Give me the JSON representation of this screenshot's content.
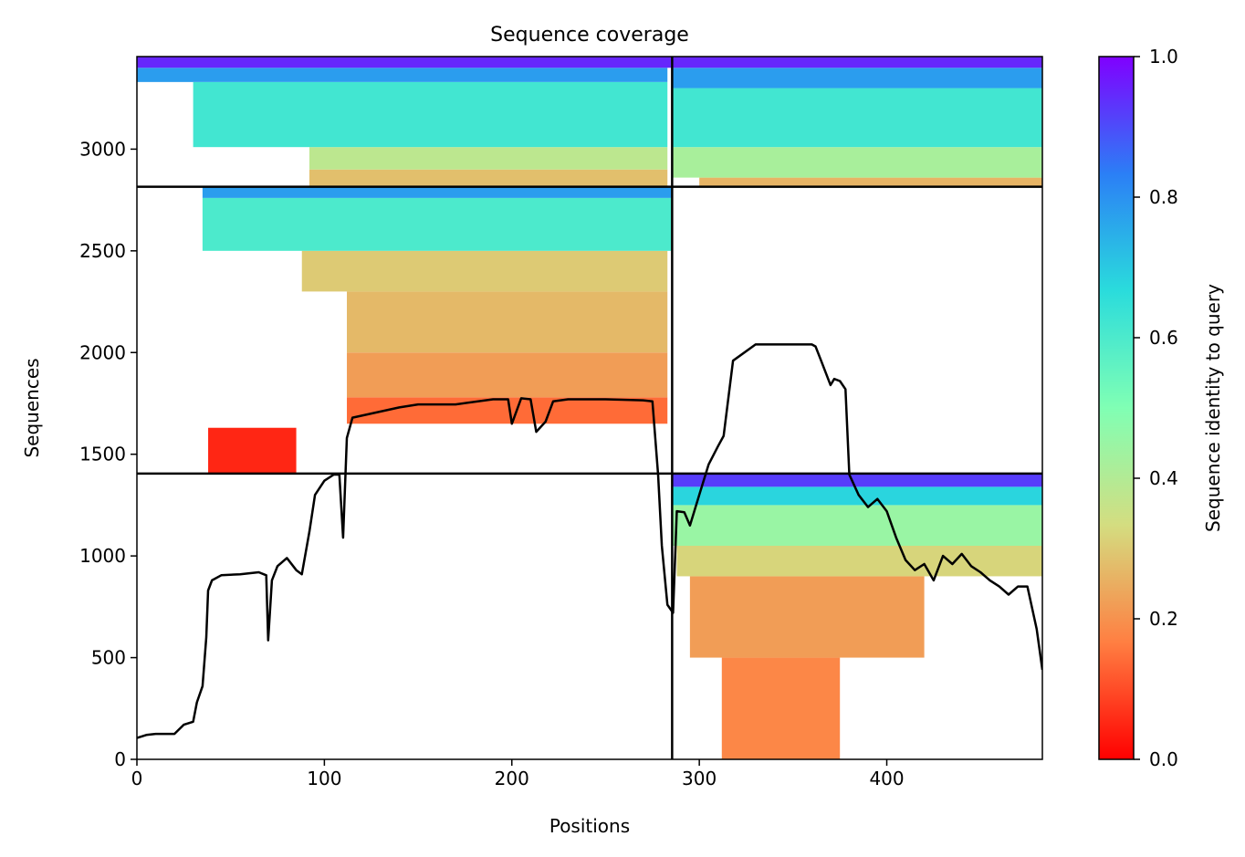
{
  "chart_data": {
    "type": "heatmap",
    "title": "Sequence coverage",
    "xlabel": "Positions",
    "ylabel": "Sequences",
    "xlim": [
      0,
      483
    ],
    "ylim": [
      0,
      3455
    ],
    "xticks": [
      0,
      100,
      200,
      300,
      400
    ],
    "xtick_labels": [
      "0",
      "100",
      "200",
      "300",
      "400"
    ],
    "yticks": [
      0,
      500,
      1000,
      1500,
      2000,
      2500,
      3000
    ],
    "ytick_labels": [
      "0",
      "500",
      "1000",
      "1500",
      "2000",
      "2500",
      "3000"
    ],
    "colorbar": {
      "label": "Sequence identity to query",
      "range": [
        0,
        1
      ],
      "ticks": [
        0,
        0.2,
        0.4,
        0.6,
        0.8,
        1.0
      ],
      "tick_labels": [
        "0.0",
        "0.2",
        "0.4",
        "0.6",
        "0.8",
        "1.0"
      ],
      "colormap": "rainbow_r",
      "stops": [
        "#ff0000",
        "#ff7f42",
        "#d4dd80",
        "#80ffb4",
        "#2adcdc",
        "#2b7ff6",
        "#8000ff"
      ]
    },
    "dividers": {
      "chain_boundary_x": 285.5,
      "block_boundaries_y": [
        1405,
        2815
      ]
    },
    "blocks": [
      {
        "x_range": [
          0,
          285
        ],
        "y_range": [
          2815,
          3455
        ],
        "rows": [
          {
            "y": [
              2815,
              2900
            ],
            "x": [
              92,
              283
            ],
            "identity": 0.28
          },
          {
            "y": [
              2900,
              3010
            ],
            "x": [
              92,
              283
            ],
            "identity": 0.38
          },
          {
            "y": [
              3010,
              3330
            ],
            "x": [
              30,
              283
            ],
            "identity": 0.62
          },
          {
            "y": [
              3330,
              3400
            ],
            "x": [
              0,
              283
            ],
            "identity": 0.78
          },
          {
            "y": [
              3400,
              3455
            ],
            "x": [
              0,
              285
            ],
            "identity": 0.95
          }
        ]
      },
      {
        "x_range": [
          286,
          483
        ],
        "y_range": [
          2815,
          3455
        ],
        "rows": [
          {
            "y": [
              2815,
              2860
            ],
            "x": [
              300,
              483
            ],
            "identity": 0.26
          },
          {
            "y": [
              2860,
              3010
            ],
            "x": [
              286,
              483
            ],
            "identity": 0.42
          },
          {
            "y": [
              3010,
              3300
            ],
            "x": [
              286,
              483
            ],
            "identity": 0.62
          },
          {
            "y": [
              3300,
              3400
            ],
            "x": [
              286,
              483
            ],
            "identity": 0.78
          },
          {
            "y": [
              3400,
              3455
            ],
            "x": [
              286,
              483
            ],
            "identity": 0.95
          }
        ]
      },
      {
        "x_range": [
          0,
          285
        ],
        "y_range": [
          1405,
          2815
        ],
        "rows": [
          {
            "y": [
              1405,
              1630
            ],
            "x": [
              38,
              85
            ],
            "identity": 0.05
          },
          {
            "y": [
              1650,
              1780
            ],
            "x": [
              112,
              283
            ],
            "identity": 0.14
          },
          {
            "y": [
              1780,
              2000
            ],
            "x": [
              112,
              283
            ],
            "identity": 0.22
          },
          {
            "y": [
              2000,
              2300
            ],
            "x": [
              112,
              283
            ],
            "identity": 0.27
          },
          {
            "y": [
              2300,
              2500
            ],
            "x": [
              88,
              283
            ],
            "identity": 0.3
          },
          {
            "y": [
              2500,
              2760
            ],
            "x": [
              35,
              285
            ],
            "identity": 0.6
          },
          {
            "y": [
              2760,
              2815
            ],
            "x": [
              35,
              285
            ],
            "identity": 0.78
          }
        ]
      },
      {
        "x_range": [
          286,
          483
        ],
        "y_range": [
          0,
          1405
        ],
        "rows": [
          {
            "y": [
              0,
              500
            ],
            "x": [
              312,
              375
            ],
            "identity": 0.18
          },
          {
            "y": [
              500,
              900
            ],
            "x": [
              295,
              420
            ],
            "identity": 0.22
          },
          {
            "y": [
              900,
              1050
            ],
            "x": [
              288,
              483
            ],
            "identity": 0.32
          },
          {
            "y": [
              1050,
              1250
            ],
            "x": [
              286,
              483
            ],
            "identity": 0.45
          },
          {
            "y": [
              1250,
              1340
            ],
            "x": [
              286,
              483
            ],
            "identity": 0.68
          },
          {
            "y": [
              1340,
              1405
            ],
            "x": [
              286,
              483
            ],
            "identity": 0.92
          }
        ]
      }
    ],
    "coverage_line": {
      "x": [
        0,
        5,
        10,
        20,
        25,
        30,
        32,
        35,
        37,
        38,
        40,
        45,
        55,
        65,
        69,
        70,
        72,
        75,
        80,
        85,
        88,
        92,
        95,
        100,
        105,
        108,
        110,
        112,
        115,
        120,
        130,
        140,
        150,
        170,
        190,
        198,
        200,
        205,
        210,
        213,
        218,
        222,
        230,
        250,
        270,
        275,
        278,
        280,
        283,
        286,
        288,
        292,
        295,
        300,
        305,
        310,
        313,
        318,
        330,
        350,
        360,
        362,
        365,
        370,
        372,
        375,
        378,
        380,
        385,
        390,
        395,
        400,
        405,
        410,
        415,
        420,
        425,
        430,
        435,
        440,
        445,
        450,
        455,
        460,
        465,
        470,
        475,
        480,
        483
      ],
      "y": [
        105,
        120,
        125,
        125,
        170,
        185,
        280,
        360,
        600,
        830,
        880,
        905,
        910,
        920,
        905,
        585,
        880,
        950,
        990,
        930,
        910,
        1120,
        1300,
        1370,
        1400,
        1400,
        1090,
        1580,
        1680,
        1690,
        1710,
        1730,
        1745,
        1745,
        1770,
        1770,
        1650,
        1775,
        1770,
        1610,
        1660,
        1760,
        1770,
        1770,
        1765,
        1760,
        1400,
        1050,
        760,
        720,
        1220,
        1215,
        1150,
        1300,
        1450,
        1540,
        1590,
        1960,
        2040,
        2040,
        2040,
        2030,
        1960,
        1840,
        1870,
        1860,
        1820,
        1400,
        1300,
        1240,
        1280,
        1220,
        1090,
        980,
        930,
        960,
        880,
        1000,
        960,
        1010,
        950,
        920,
        880,
        850,
        810,
        850,
        850,
        640,
        440
      ]
    }
  }
}
